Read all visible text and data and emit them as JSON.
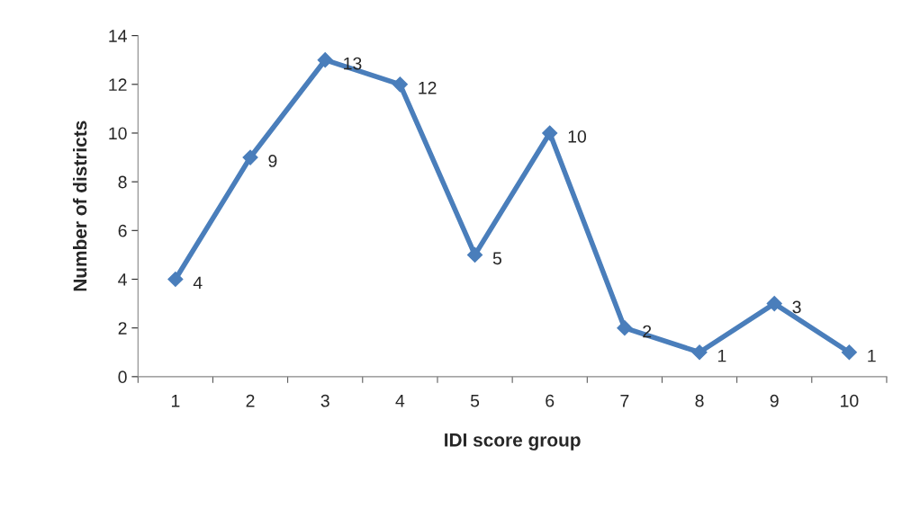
{
  "chart_data": {
    "type": "line",
    "xlabel": "IDI score group",
    "ylabel": "Number of districts",
    "categories": [
      "1",
      "2",
      "3",
      "4",
      "5",
      "6",
      "7",
      "8",
      "9",
      "10"
    ],
    "series": [
      {
        "color": "#4a7ebb",
        "values": [
          4,
          9,
          13,
          12,
          5,
          10,
          2,
          1,
          3,
          1
        ]
      }
    ],
    "ylim": [
      0,
      14
    ],
    "yticks": [
      0,
      2,
      4,
      6,
      8,
      10,
      12,
      14
    ],
    "marker": "diamond",
    "line_style": "solid",
    "data_labels": true,
    "grid": false,
    "legend": false
  }
}
